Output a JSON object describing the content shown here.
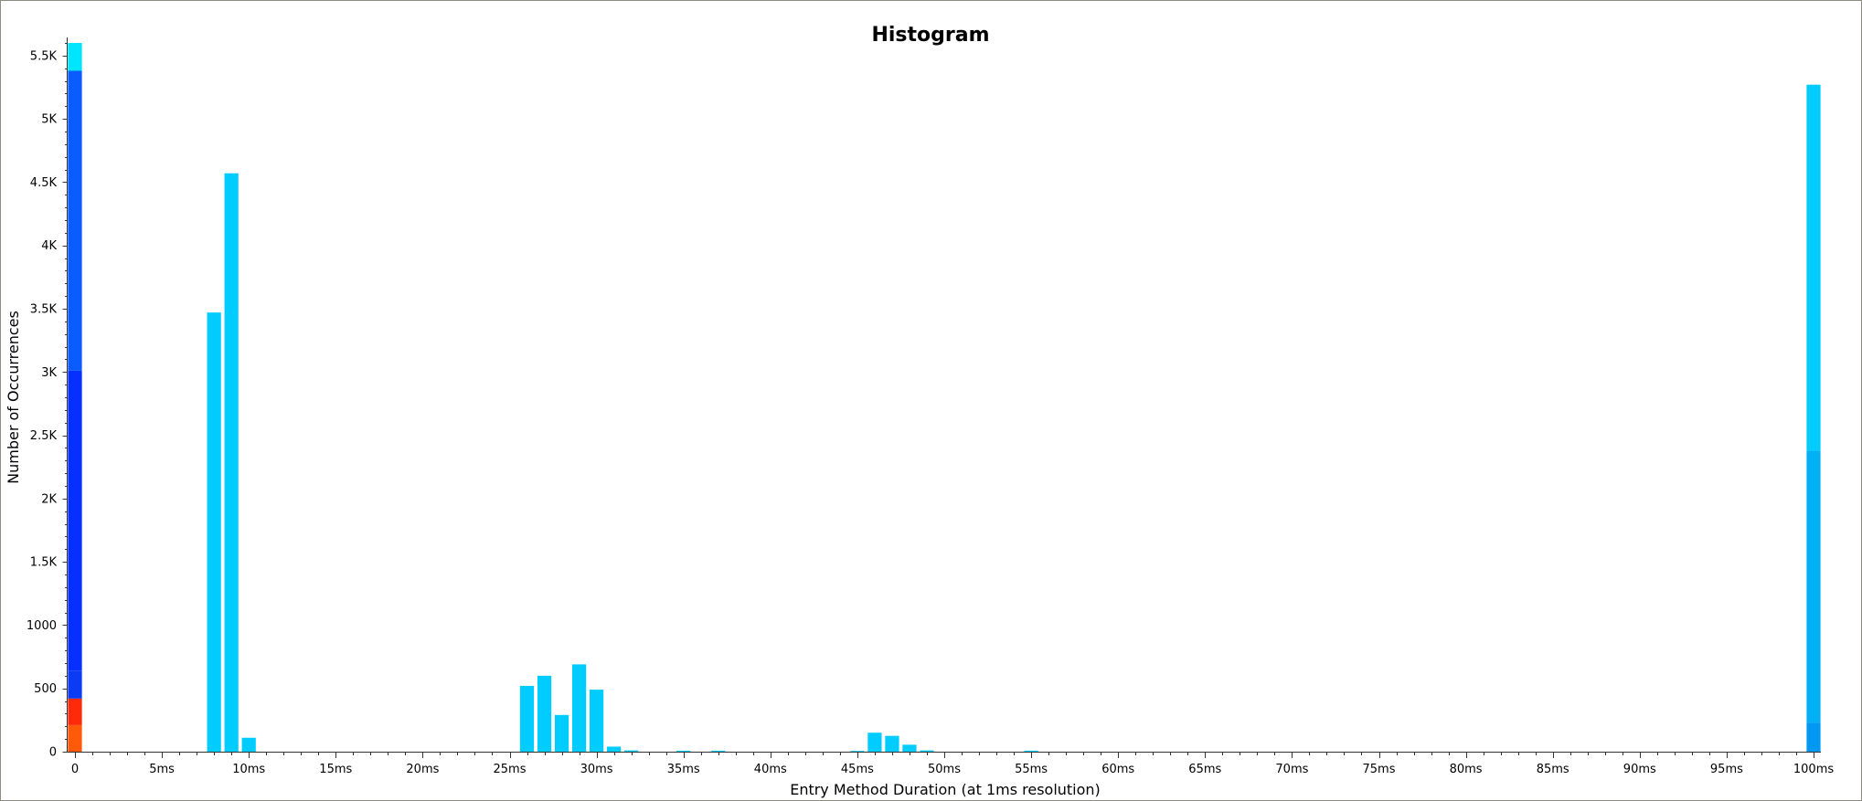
{
  "chart_data": {
    "type": "bar",
    "stacked": true,
    "title": "Histogram",
    "xlabel": "Entry Method Duration (at 1ms resolution)",
    "ylabel": "Number of Occurrences",
    "xlim": [
      0,
      100
    ],
    "ylim": [
      0,
      5600
    ],
    "grid": false,
    "legend": "none",
    "x_tick_labels": [
      "0",
      "5ms",
      "10ms",
      "15ms",
      "20ms",
      "25ms",
      "30ms",
      "35ms",
      "40ms",
      "45ms",
      "50ms",
      "55ms",
      "60ms",
      "65ms",
      "70ms",
      "75ms",
      "80ms",
      "85ms",
      "90ms",
      "95ms",
      "100ms"
    ],
    "y_tick_labels": [
      "0",
      "500",
      "1000",
      "1.5K",
      "2K",
      "2.5K",
      "3K",
      "3.5K",
      "4K",
      "4.5K",
      "5K",
      "5.5K"
    ],
    "y_tick_values": [
      0,
      500,
      1000,
      1500,
      2000,
      2500,
      3000,
      3500,
      4000,
      4500,
      5000,
      5500
    ],
    "colors": {
      "cyan": "#00ccff",
      "light_cyan": "#00e5ff",
      "blue": "#0a5cff",
      "deep_blue": "#0630ff",
      "med_blue": "#0a3cf5",
      "red": "#ff2a0a",
      "orange": "#ff5a0a",
      "sky": "#00b0f5",
      "azure": "#0098f0"
    },
    "bars": [
      {
        "x": 0,
        "segments": [
          {
            "value": 210,
            "color": "#ff5a0a"
          },
          {
            "value": 210,
            "color": "#ff2a0a"
          },
          {
            "value": 220,
            "color": "#0a3cf5"
          },
          {
            "value": 2370,
            "color": "#0630ff"
          },
          {
            "value": 2370,
            "color": "#0a5cff"
          },
          {
            "value": 220,
            "color": "#00e5ff"
          }
        ]
      },
      {
        "x": 8,
        "segments": [
          {
            "value": 3470,
            "color": "#00ccff"
          }
        ]
      },
      {
        "x": 9,
        "segments": [
          {
            "value": 4570,
            "color": "#00ccff"
          }
        ]
      },
      {
        "x": 10,
        "segments": [
          {
            "value": 110,
            "color": "#00ccff"
          }
        ]
      },
      {
        "x": 26,
        "segments": [
          {
            "value": 520,
            "color": "#00ccff"
          }
        ]
      },
      {
        "x": 27,
        "segments": [
          {
            "value": 600,
            "color": "#00ccff"
          }
        ]
      },
      {
        "x": 28,
        "segments": [
          {
            "value": 290,
            "color": "#00ccff"
          }
        ]
      },
      {
        "x": 29,
        "segments": [
          {
            "value": 690,
            "color": "#00ccff"
          }
        ]
      },
      {
        "x": 30,
        "segments": [
          {
            "value": 490,
            "color": "#00ccff"
          }
        ]
      },
      {
        "x": 31,
        "segments": [
          {
            "value": 40,
            "color": "#00ccff"
          }
        ]
      },
      {
        "x": 32,
        "segments": [
          {
            "value": 10,
            "color": "#00ccff"
          }
        ]
      },
      {
        "x": 35,
        "segments": [
          {
            "value": 8,
            "color": "#00ccff"
          }
        ]
      },
      {
        "x": 37,
        "segments": [
          {
            "value": 8,
            "color": "#00ccff"
          }
        ]
      },
      {
        "x": 45,
        "segments": [
          {
            "value": 6,
            "color": "#00ccff"
          }
        ]
      },
      {
        "x": 46,
        "segments": [
          {
            "value": 150,
            "color": "#00ccff"
          }
        ]
      },
      {
        "x": 47,
        "segments": [
          {
            "value": 125,
            "color": "#00ccff"
          }
        ]
      },
      {
        "x": 48,
        "segments": [
          {
            "value": 55,
            "color": "#00ccff"
          }
        ]
      },
      {
        "x": 49,
        "segments": [
          {
            "value": 10,
            "color": "#00ccff"
          }
        ]
      },
      {
        "x": 55,
        "segments": [
          {
            "value": 8,
            "color": "#00ccff"
          }
        ]
      },
      {
        "x": 100,
        "segments": [
          {
            "value": 230,
            "color": "#0098f0"
          },
          {
            "value": 2150,
            "color": "#00b0f5"
          },
          {
            "value": 2890,
            "color": "#00ccff"
          }
        ]
      }
    ]
  }
}
